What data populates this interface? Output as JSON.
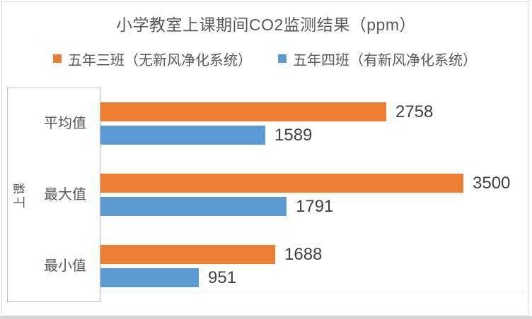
{
  "chart_data": {
    "type": "bar",
    "orientation": "horizontal",
    "title": "小学教室上课期间CO2监测结果（ppm）",
    "categories": [
      "平均值",
      "最大值",
      "最小值"
    ],
    "series": [
      {
        "name": "五年三班（无新风净化系统）",
        "color": "#ED7D31",
        "values": [
          2758,
          3500,
          1688
        ]
      },
      {
        "name": "五年四班（有新风净化系统）",
        "color": "#5B9BD5",
        "values": [
          1589,
          1791,
          951
        ]
      }
    ],
    "category_axis_title": "上课",
    "value_axis": {
      "min": 0,
      "max": 3500,
      "visible": false
    },
    "data_labels": true,
    "legend_position": "top",
    "grid": false,
    "title_color": "#595959",
    "text_color": "#595959",
    "data_label_color": "#404040"
  }
}
